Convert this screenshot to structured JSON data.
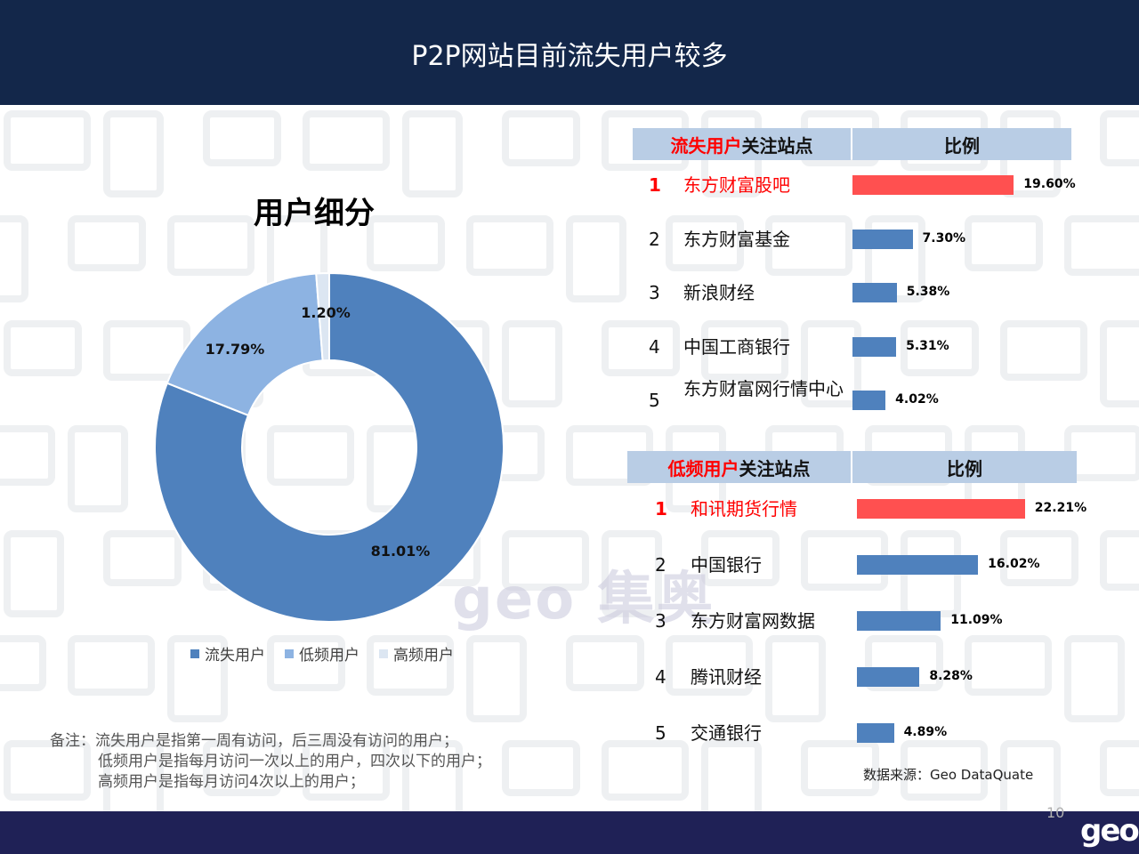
{
  "header": {
    "title": "P2P网站目前流失用户较多"
  },
  "chart_data": {
    "type": "pie",
    "title": "用户细分",
    "categories": [
      "流失用户",
      "低频用户",
      "高频用户"
    ],
    "values": [
      81.01,
      17.79,
      1.2
    ],
    "labels": [
      "81.01%",
      "17.79%",
      "1.20%"
    ],
    "colors": [
      "#4f81bd",
      "#8db3e2",
      "#dce6f2"
    ]
  },
  "note": {
    "line1": "备注：流失用户是指第一周有访问，后三周没有访问的用户；",
    "line2": "低频用户是指每月访问一次以上的用户，四次以下的用户；",
    "line3": "高频用户是指每月访问4次以上的用户；"
  },
  "table1": {
    "header_highlight": "流失用户",
    "header_rest": "关注站点",
    "col2": "比例",
    "rows": [
      {
        "rank": "1",
        "site": "东方财富股吧",
        "value": 19.6,
        "label": "19.60%"
      },
      {
        "rank": "2",
        "site": "东方财富基金",
        "value": 7.3,
        "label": "7.30%"
      },
      {
        "rank": "3",
        "site": "新浪财经",
        "value": 5.38,
        "label": "5.38%"
      },
      {
        "rank": "4",
        "site": "中国工商银行",
        "value": 5.31,
        "label": "5.31%"
      },
      {
        "rank": "5",
        "site": "东方财富网行情中心",
        "value": 4.02,
        "label": "4.02%"
      }
    ]
  },
  "table2": {
    "header_highlight": "低频用户",
    "header_rest": "关注站点",
    "col2": "比例",
    "rows": [
      {
        "rank": "1",
        "site": "和讯期货行情",
        "value": 22.21,
        "label": "22.21%"
      },
      {
        "rank": "2",
        "site": "中国银行",
        "value": 16.02,
        "label": "16.02%"
      },
      {
        "rank": "3",
        "site": "东方财富网数据",
        "value": 11.09,
        "label": "11.09%"
      },
      {
        "rank": "4",
        "site": "腾讯财经",
        "value": 8.28,
        "label": "8.28%"
      },
      {
        "rank": "5",
        "site": "交通银行",
        "value": 4.89,
        "label": "4.89%"
      }
    ]
  },
  "colors": {
    "highlight_bar": "#ff5050",
    "bar": "#4f81bd",
    "header_bg": "#13274a"
  },
  "source": "数据来源：Geo  DataQuate",
  "page_number": "10",
  "logo": "geo",
  "watermark": "geo 集奥"
}
